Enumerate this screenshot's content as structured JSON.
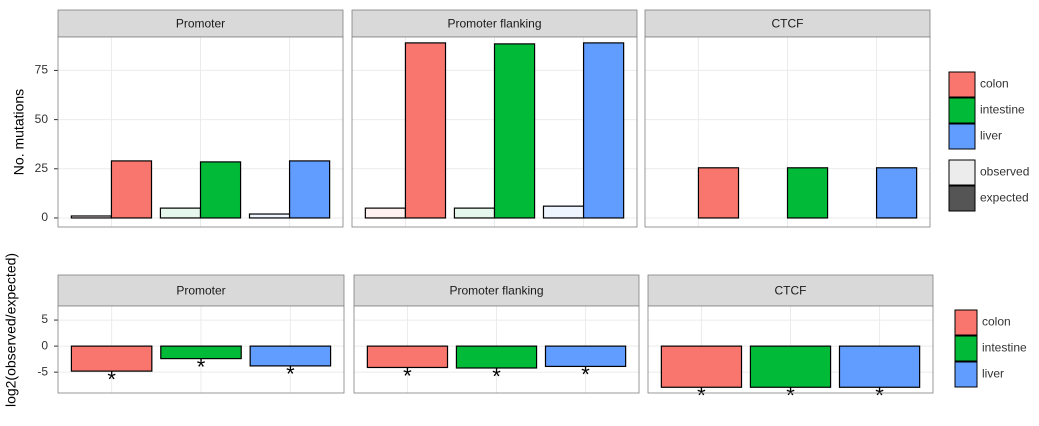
{
  "chart_data": [
    {
      "type": "bar",
      "y_label": "No. mutations",
      "categories": [
        "colon",
        "intestine",
        "liver"
      ],
      "category_colors": [
        "#F8766D",
        "#00BA38",
        "#619CFF"
      ],
      "series": [
        {
          "name": "observed",
          "color": "#ececec"
        },
        {
          "name": "expected",
          "color": "#555555"
        }
      ],
      "ylim": [
        -4.6,
        92
      ],
      "yticks": [
        0,
        25,
        50,
        75
      ],
      "grid": true,
      "facets": [
        {
          "title": "Promoter",
          "values": [
            [
              1,
              5,
              2
            ],
            [
              29,
              28.5,
              29
            ]
          ]
        },
        {
          "title": "Promoter flanking",
          "values": [
            [
              5,
              5,
              6
            ],
            [
              89,
              88.5,
              89
            ]
          ]
        },
        {
          "title": "CTCF",
          "values": [
            [
              0,
              0,
              0
            ],
            [
              25.5,
              25.5,
              25.5
            ]
          ]
        }
      ]
    },
    {
      "type": "bar",
      "y_label": "log2(observed/expected)",
      "categories": [
        "colon",
        "intestine",
        "liver"
      ],
      "category_colors": [
        "#F8766D",
        "#00BA38",
        "#619CFF"
      ],
      "ylim": [
        -9,
        7.7
      ],
      "yticks": [
        -5,
        0,
        5
      ],
      "grid": true,
      "facets": [
        {
          "title": "Promoter",
          "values": [
            -4.8,
            -2.4,
            -3.8
          ],
          "annotations": [
            "*",
            "*",
            "*"
          ]
        },
        {
          "title": "Promoter flanking",
          "values": [
            -4.1,
            -4.2,
            -3.9
          ],
          "annotations": [
            "*",
            "*",
            "*"
          ]
        },
        {
          "title": "CTCF",
          "values": [
            -7.9,
            -7.9,
            -7.9
          ],
          "annotations": [
            "*",
            "*",
            "*"
          ]
        }
      ]
    }
  ]
}
